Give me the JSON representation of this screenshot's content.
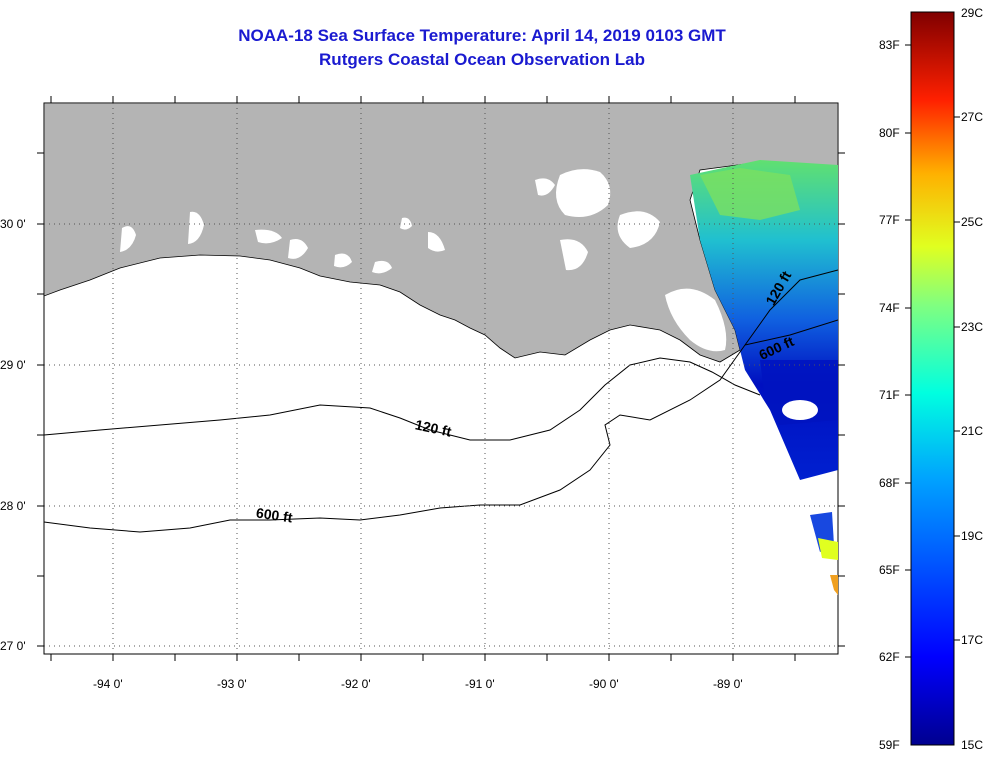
{
  "title": {
    "line1": "NOAA-18 Sea Surface Temperature:  April 14, 2019 0103 GMT",
    "line2": "Rutgers Coastal Ocean Observation Lab"
  },
  "map": {
    "lon_ticks": [
      "-94 0'",
      "-93 0'",
      "-92 0'",
      "-91 0'",
      "-90 0'",
      "-89 0'"
    ],
    "lat_ticks": [
      "30 0'",
      "29 0'",
      "28 0'",
      "27 0'"
    ],
    "contours": [
      {
        "label": "120 ft",
        "depth": "120 ft"
      },
      {
        "label": "600 ft",
        "depth": "600 ft"
      },
      {
        "label": "120 ft",
        "depth": "120 ft"
      },
      {
        "label": "600 ft",
        "depth": "600 ft"
      }
    ],
    "land_color": "#b4b4b4",
    "sea_color": "#ffffff"
  },
  "colorbar": {
    "fahrenheit": [
      "83F",
      "80F",
      "77F",
      "74F",
      "71F",
      "68F",
      "65F",
      "62F",
      "59F"
    ],
    "celsius": [
      "29C",
      "27C",
      "25C",
      "23C",
      "21C",
      "19C",
      "17C",
      "15C"
    ],
    "range_c": [
      15,
      29
    ]
  }
}
